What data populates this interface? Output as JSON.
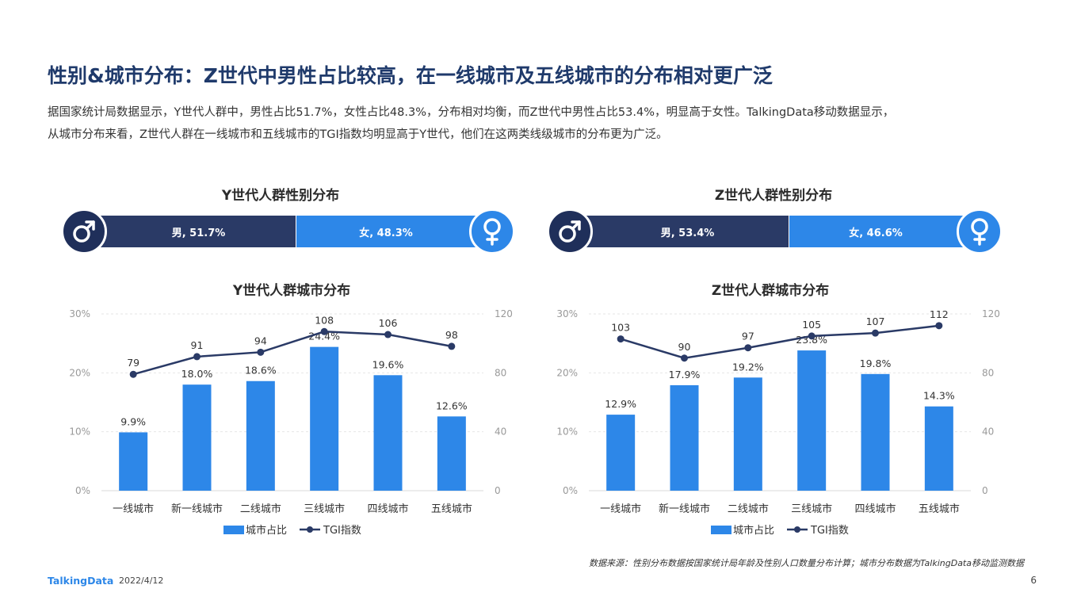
{
  "page": {
    "title": "性别&城市分布：Z世代中男性占比较高，在一线城市及五线城市的分布相对更广泛",
    "intro_line1": "据国家统计局数据显示，Y世代人群中，男性占比51.7%，女性占比48.3%，分布相对均衡，而Z世代中男性占比53.4%，明显高于女性。TalkingData移动数据显示，",
    "intro_line2": "从城市分布来看，Z世代人群在一线城市和五线城市的TGI指数均明显高于Y世代，他们在这两类线级城市的分布更为广泛。",
    "source": "数据来源：性别分布数据按国家统计局年龄及性别人口数量分布计算；城市分布数据为TalkingData移动监测数据",
    "footer_logo": "TalkingData",
    "footer_date": "2022/4/12",
    "page_number": "6"
  },
  "gender": {
    "y": {
      "title": "Y世代人群性别分布",
      "male_label": "男, 51.7%",
      "female_label": "女, 48.3%",
      "male_share": 51.7,
      "female_share": 48.3
    },
    "z": {
      "title": "Z世代人群性别分布",
      "male_label": "男, 53.4%",
      "female_label": "女, 46.6%",
      "male_share": 53.4,
      "female_share": 46.6
    },
    "colors": {
      "male": "#2a3a66",
      "female": "#2d87e8"
    },
    "icons": {
      "male": "male-symbol-icon",
      "female": "female-symbol-icon"
    }
  },
  "chart_data": [
    {
      "type": "bar",
      "title": "Y世代人群城市分布",
      "categories": [
        "一线城市",
        "新一线城市",
        "二线城市",
        "三线城市",
        "四线城市",
        "五线城市"
      ],
      "series": [
        {
          "name": "城市占比",
          "type": "bar",
          "axis": "left",
          "values": [
            9.9,
            18.0,
            18.6,
            24.4,
            19.6,
            12.6
          ],
          "labels": [
            "9.9%",
            "18.0%",
            "18.6%",
            "24.4%",
            "19.6%",
            "12.6%"
          ],
          "color": "#2d87e8"
        },
        {
          "name": "TGI指数",
          "type": "line",
          "axis": "right",
          "values": [
            79,
            91,
            94,
            108,
            106,
            98
          ],
          "labels": [
            "79",
            "91",
            "94",
            "108",
            "106",
            "98"
          ],
          "color": "#2a3a66"
        }
      ],
      "ylim": [
        0,
        30
      ],
      "y2lim": [
        0,
        120
      ],
      "yticks": [
        "0%",
        "10%",
        "20%",
        "30%"
      ],
      "y2ticks": [
        "0",
        "40",
        "80",
        "120"
      ],
      "grid": true,
      "legend": "bottom"
    },
    {
      "type": "bar",
      "title": "Z世代人群城市分布",
      "categories": [
        "一线城市",
        "新一线城市",
        "二线城市",
        "三线城市",
        "四线城市",
        "五线城市"
      ],
      "series": [
        {
          "name": "城市占比",
          "type": "bar",
          "axis": "left",
          "values": [
            12.9,
            17.9,
            19.2,
            23.8,
            19.8,
            14.3
          ],
          "labels": [
            "12.9%",
            "17.9%",
            "19.2%",
            "23.8%",
            "19.8%",
            "14.3%"
          ],
          "color": "#2d87e8"
        },
        {
          "name": "TGI指数",
          "type": "line",
          "axis": "right",
          "values": [
            103,
            90,
            97,
            105,
            107,
            112
          ],
          "labels": [
            "103",
            "90",
            "97",
            "105",
            "107",
            "112"
          ],
          "color": "#2a3a66"
        }
      ],
      "ylim": [
        0,
        30
      ],
      "y2lim": [
        0,
        120
      ],
      "yticks": [
        "0%",
        "10%",
        "20%",
        "30%"
      ],
      "y2ticks": [
        "0",
        "40",
        "80",
        "120"
      ],
      "grid": true,
      "legend": "bottom"
    }
  ]
}
